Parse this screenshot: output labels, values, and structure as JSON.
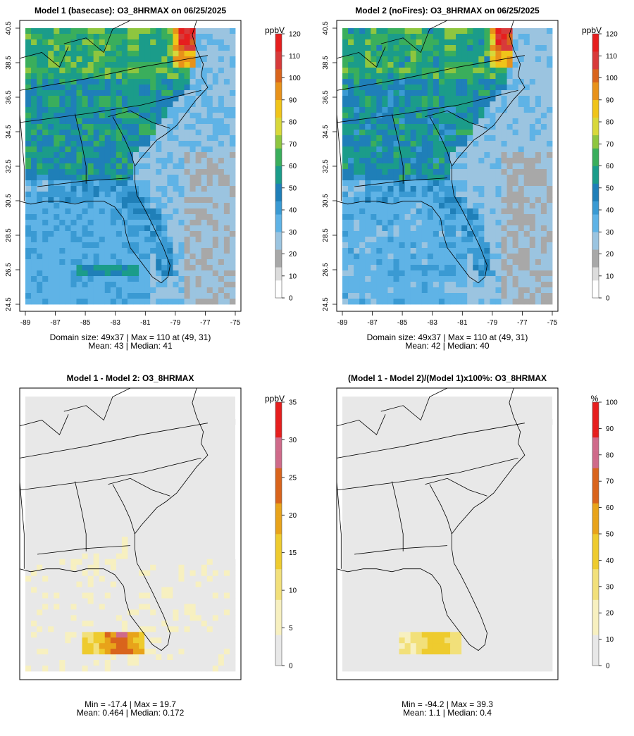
{
  "colors": {
    "conc": [
      "#ffffff",
      "#dcdcdc",
      "#a8a8a8",
      "#9bc4e0",
      "#5fb3e6",
      "#3a9ad3",
      "#1f7fb8",
      "#1b9c8a",
      "#3aae5c",
      "#8ec63f",
      "#d8d83a",
      "#f0c419",
      "#e8921a",
      "#d9641c",
      "#d83a3a",
      "#e61e1e"
    ],
    "diff": [
      "#e8e8e8",
      "#f7f0c0",
      "#f2e07a",
      "#eecb2e",
      "#e8a31a",
      "#d9641c",
      "#cf6a8a",
      "#e61e1e"
    ],
    "frame": "#000000",
    "state_lines": "#000000"
  },
  "chart_data": [
    {
      "type": "heatmap",
      "title": "Model 1 (basecase): O3_8HRMAX on 06/25/2025",
      "unit_label": "ppbV",
      "x_ticks": [
        "-89",
        "-87",
        "-85",
        "-83",
        "-81",
        "-79",
        "-77",
        "-75"
      ],
      "y_ticks": [
        "24.5",
        "26.5",
        "28.5",
        "30.5",
        "32.5",
        "34.5",
        "36.5",
        "38.5",
        "40.5"
      ],
      "xlim": [
        -89,
        -75
      ],
      "ylim": [
        24.5,
        40.5
      ],
      "colorbar": {
        "min": 0,
        "max": 120,
        "ticks": [
          "0",
          "10",
          "20",
          "30",
          "40",
          "50",
          "60",
          "70",
          "80",
          "90",
          "100",
          "110",
          "120"
        ]
      },
      "grid": {
        "cols": 37,
        "rows": 49
      },
      "stats_line1": "Domain size: 49x37 | Max = 110 at (49, 31)",
      "stats_line2": "Mean: 43 |  Median: 41",
      "domain_rows": 49,
      "domain_cols": 37,
      "max": 110,
      "max_at": [
        49,
        31
      ],
      "mean": 43,
      "median": 41,
      "field": "base"
    },
    {
      "type": "heatmap",
      "title": "Model 2 (noFires): O3_8HRMAX on 06/25/2025",
      "unit_label": "ppbV",
      "x_ticks": [
        "-89",
        "-87",
        "-85",
        "-83",
        "-81",
        "-79",
        "-77",
        "-75"
      ],
      "y_ticks": [
        "24.5",
        "26.5",
        "28.5",
        "30.5",
        "32.5",
        "34.5",
        "36.5",
        "38.5",
        "40.5"
      ],
      "xlim": [
        -89,
        -75
      ],
      "ylim": [
        24.5,
        40.5
      ],
      "colorbar": {
        "min": 0,
        "max": 120,
        "ticks": [
          "0",
          "10",
          "20",
          "30",
          "40",
          "50",
          "60",
          "70",
          "80",
          "90",
          "100",
          "110",
          "120"
        ]
      },
      "grid": {
        "cols": 37,
        "rows": 49
      },
      "stats_line1": "Domain size: 49x37 | Max = 110 at (49, 31)",
      "stats_line2": "Mean: 42 |  Median: 40",
      "domain_rows": 49,
      "domain_cols": 37,
      "max": 110,
      "max_at": [
        49,
        31
      ],
      "mean": 42,
      "median": 40,
      "field": "nofire"
    },
    {
      "type": "heatmap",
      "title": "Model 1 - Model 2: O3_8HRMAX",
      "unit_label": "ppbV",
      "x_ticks": [],
      "y_ticks": [],
      "colorbar": {
        "min": 0,
        "max": 35,
        "ticks": [
          "0",
          "5",
          "10",
          "15",
          "20",
          "25",
          "30",
          "35"
        ]
      },
      "grid": {
        "cols": 37,
        "rows": 49
      },
      "stats_line1": "Min = -17.4 | Max = 19.7",
      "stats_line2": "Mean: 0.464 |  Median: 0.172",
      "min": -17.4,
      "max": 19.7,
      "mean": 0.464,
      "median": 0.172,
      "field": "diff"
    },
    {
      "type": "heatmap",
      "title": "(Model 1 - Model 2)/(Model 1)x100%: O3_8HRMAX",
      "unit_label": "%",
      "x_ticks": [],
      "y_ticks": [],
      "colorbar": {
        "min": 0,
        "max": 100,
        "ticks": [
          "0",
          "10",
          "20",
          "30",
          "40",
          "50",
          "60",
          "70",
          "80",
          "90",
          "100"
        ]
      },
      "grid": {
        "cols": 37,
        "rows": 49
      },
      "stats_line1": "Min = -94.2 | Max = 39.3",
      "stats_line2": "Mean: 1.1 |  Median: 0.4",
      "min": -94.2,
      "max": 39.3,
      "mean": 1.1,
      "median": 0.4,
      "field": "pct"
    }
  ]
}
